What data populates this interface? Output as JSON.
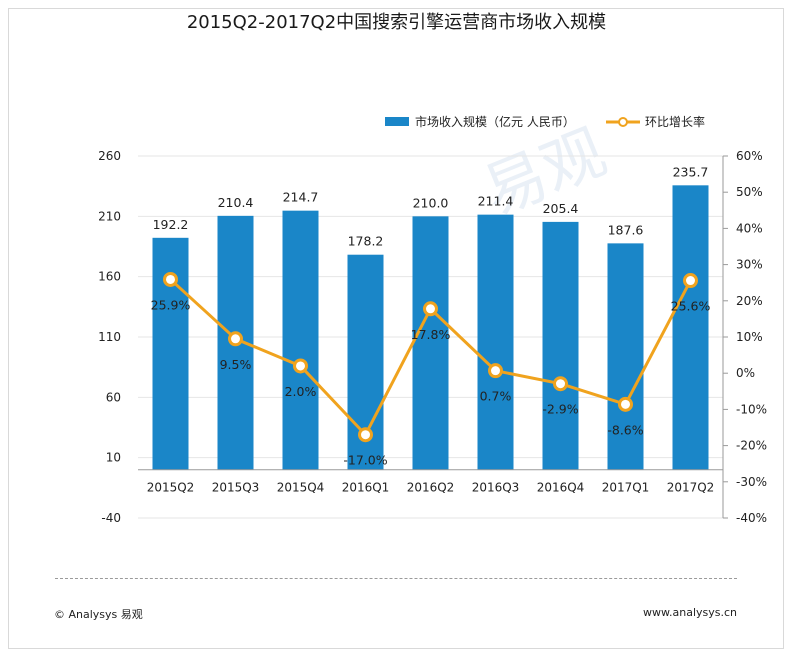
{
  "title": "2015Q2-2017Q2中国搜索引擎运营商市场收入规模",
  "chart_data": {
    "type": "bar",
    "categories": [
      "2015Q2",
      "2015Q3",
      "2015Q4",
      "2016Q1",
      "2016Q2",
      "2016Q3",
      "2016Q4",
      "2017Q1",
      "2017Q2"
    ],
    "series": [
      {
        "name": "市场收入规模（亿元  人民币）",
        "type": "bar",
        "axis": "left",
        "values": [
          192.2,
          210.4,
          214.7,
          178.2,
          210.0,
          211.4,
          205.4,
          187.6,
          235.7
        ],
        "labels": [
          "192.2",
          "210.4",
          "214.7",
          "178.2",
          "210.0",
          "211.4",
          "205.4",
          "187.6",
          "235.7"
        ],
        "color": "#1a86c8"
      },
      {
        "name": "环比增长率",
        "type": "line",
        "axis": "right",
        "values": [
          25.9,
          9.5,
          2.0,
          -17.0,
          17.8,
          0.7,
          -2.9,
          -8.6,
          25.6
        ],
        "labels": [
          "25.9%",
          "9.5%",
          "2.0%",
          "-17.0%",
          "17.8%",
          "0.7%",
          "-2.9%",
          "-8.6%",
          "25.6%"
        ],
        "color": "#f0a31e"
      }
    ],
    "y_left": {
      "min": -40,
      "max": 260,
      "ticks": [
        260,
        210,
        160,
        110,
        60,
        10,
        -40
      ],
      "tick_labels": [
        "260",
        "210",
        "160",
        "110",
        "60",
        "10",
        "-40"
      ]
    },
    "y_right": {
      "min": -40,
      "max": 60,
      "ticks": [
        60,
        50,
        40,
        30,
        20,
        10,
        0,
        -10,
        -20,
        -30,
        -40
      ],
      "tick_labels": [
        "60%",
        "50%",
        "40%",
        "30%",
        "20%",
        "10%",
        "0%",
        "-10%",
        "-20%",
        "-30%",
        "-40%"
      ]
    },
    "x_axis_at": 0,
    "legend_position": "top-right"
  },
  "footer": {
    "left": "© Analysys 易观",
    "right": "www.analysys.cn"
  },
  "watermark": "易观"
}
